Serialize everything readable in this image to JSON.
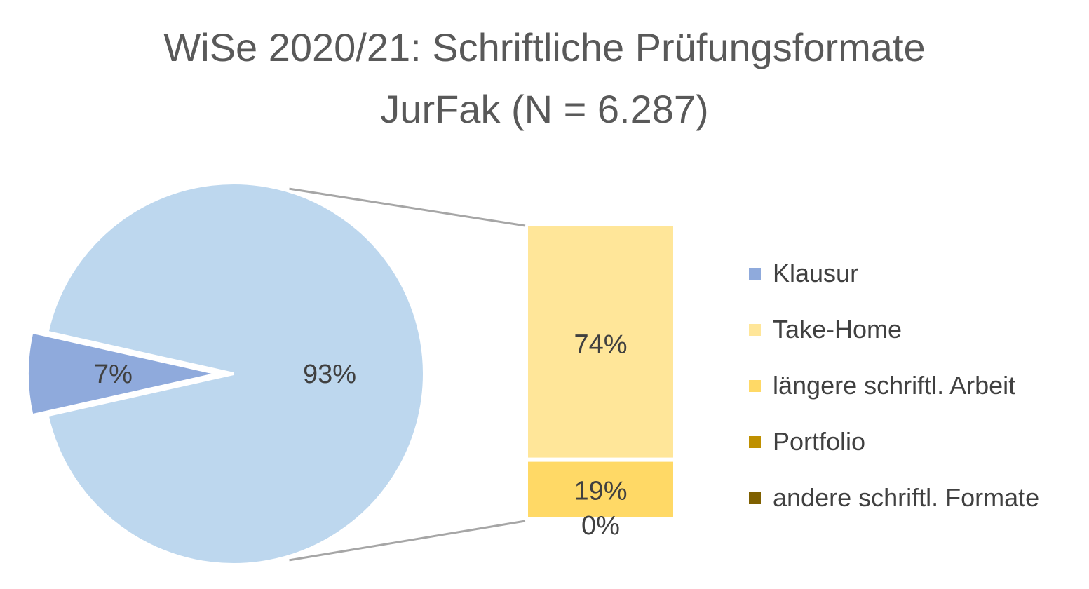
{
  "chart_data": {
    "type": "pie",
    "subtype": "bar-of-pie",
    "title": "WiSe 2020/21: Schriftliche Prüfungsformate",
    "subtitle": "JurFak (N = 6.287)",
    "pie": {
      "slices": [
        {
          "label": "Klausur",
          "value": 7,
          "display": "7%",
          "color": "#8faadc",
          "exploded": true
        },
        {
          "value": 93,
          "display": "93%",
          "color": "#bdd7ee"
        }
      ]
    },
    "bar": {
      "segments": [
        {
          "label": "Take-Home",
          "value": 74,
          "display": "74%",
          "color": "#ffe699"
        },
        {
          "label": "längere schriftl. Arbeit",
          "value": 19,
          "display": "19%",
          "color": "#ffd966"
        },
        {
          "label": "Portfolio",
          "value": 0,
          "display": "0%",
          "color": "#bf9000"
        },
        {
          "label": "andere schriftl. Formate",
          "value": 0,
          "display": "",
          "color": "#7f6000"
        }
      ]
    },
    "legend": {
      "position": "right",
      "items": [
        {
          "label": "Klausur",
          "color": "#8faadc"
        },
        {
          "label": "Take-Home",
          "color": "#ffe699"
        },
        {
          "label": "längere schriftl. Arbeit",
          "color": "#ffd966"
        },
        {
          "label": "Portfolio",
          "color": "#bf9000"
        },
        {
          "label": "andere schriftl. Formate",
          "color": "#7f6000"
        }
      ]
    },
    "colors": {
      "label_text": "#404040",
      "connector": "#a6a6a6",
      "title_text": "#595959"
    }
  }
}
